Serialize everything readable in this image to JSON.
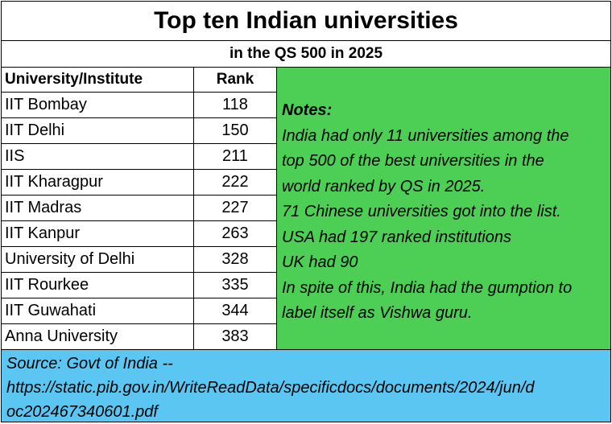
{
  "title": "Top ten Indian universities",
  "subtitle": "in the QS 500 in 2025",
  "table": {
    "headers": {
      "name": "University/Institute",
      "rank": "Rank"
    },
    "rows": [
      {
        "name": "IIT Bombay",
        "rank": "118"
      },
      {
        "name": "IIT Delhi",
        "rank": "150"
      },
      {
        "name": "IIS",
        "rank": "211"
      },
      {
        "name": "IIT Kharagpur",
        "rank": "222"
      },
      {
        "name": "IIT Madras",
        "rank": "227"
      },
      {
        "name": "IIT Kanpur",
        "rank": "263"
      },
      {
        "name": "University of Delhi",
        "rank": "328"
      },
      {
        "name": "IIT Rourkee",
        "rank": "335"
      },
      {
        "name": "IIT Guwahati",
        "rank": "344"
      },
      {
        "name": "Anna University",
        "rank": "383"
      }
    ]
  },
  "notes": {
    "heading": "Notes:",
    "lines": [
      "India had only 11 universities among the",
      "top 500 of the best universities in the",
      "world ranked by QS in 2025.",
      "71 Chinese universities got into the list.",
      "USA had 197 ranked institutions",
      "UK had 90",
      "In spite of this, India had the gumption to",
      "label itself as Vishwa guru."
    ]
  },
  "source": {
    "lines": [
      "Source: Govt of India --",
      "https://static.pib.gov.in/WriteReadData/specificdocs/documents/2024/jun/d",
      "oc202467340601.pdf"
    ]
  },
  "colors": {
    "notes_bg": "#4ccf54",
    "source_bg": "#5cc6f2"
  }
}
